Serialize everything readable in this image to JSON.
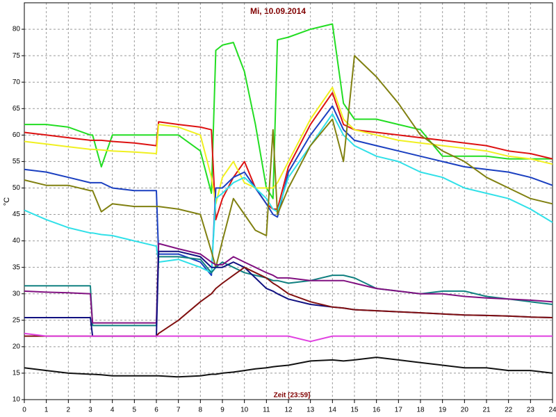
{
  "chart_data": {
    "type": "line",
    "title": "Mi, 10.09.2014",
    "ylabel": "°C",
    "xlabel": "Zeit [23:59]",
    "xlim": [
      0,
      24
    ],
    "ylim": [
      10,
      85
    ],
    "xticks": [
      0,
      1,
      2,
      3,
      4,
      5,
      6,
      7,
      8,
      9,
      10,
      11,
      12,
      13,
      14,
      15,
      16,
      17,
      18,
      19,
      20,
      21,
      22,
      23,
      24
    ],
    "yticks": [
      10,
      15,
      20,
      25,
      30,
      35,
      40,
      45,
      50,
      55,
      60,
      65,
      70,
      75,
      80
    ],
    "grid": true,
    "x": [
      0,
      1,
      2,
      3,
      3.1,
      3.5,
      4,
      5,
      6,
      6.1,
      7,
      8,
      8.5,
      8.7,
      9,
      9.5,
      10,
      10.5,
      11,
      11.3,
      11.5,
      12,
      13,
      14,
      14.5,
      15,
      16,
      17,
      18,
      19,
      20,
      21,
      22,
      23,
      24
    ],
    "series": [
      {
        "color": "#22dd22",
        "values": [
          62,
          62,
          61.5,
          60,
          60,
          54,
          60,
          60,
          60,
          60,
          60,
          57,
          49,
          76,
          77,
          77.5,
          72,
          62,
          50,
          48,
          78,
          78.5,
          80,
          81,
          66,
          63,
          63,
          62,
          61,
          56,
          56,
          56,
          55.5,
          55.5,
          55.5
        ]
      },
      {
        "color": "#dd1111",
        "values": [
          60.5,
          60,
          59.5,
          59,
          59,
          59,
          58.8,
          58.5,
          58,
          62.5,
          62,
          61.5,
          61,
          44,
          48,
          52,
          55,
          50,
          47,
          46,
          46,
          54,
          62,
          68,
          62,
          61,
          60.5,
          60,
          59.5,
          59,
          58.5,
          58,
          57,
          56.5,
          55.5
        ]
      },
      {
        "color": "#f0f020",
        "values": [
          58.8,
          58.3,
          57.8,
          57.3,
          57.3,
          57.2,
          57,
          56.8,
          56.5,
          62,
          61.5,
          60,
          52,
          47,
          52,
          55,
          51,
          50,
          50,
          50,
          51,
          55,
          63,
          69,
          63,
          61,
          60,
          59,
          58.5,
          58,
          57.5,
          57,
          56,
          55.5,
          54.5
        ]
      },
      {
        "color": "#1a3fc0",
        "values": [
          53.5,
          53,
          52,
          51,
          51,
          51,
          50,
          49.5,
          49.5,
          37.5,
          37.5,
          36,
          33.5,
          50,
          50,
          52,
          53,
          50,
          47,
          45,
          44.5,
          53,
          60,
          65.5,
          61,
          59,
          58,
          57,
          56,
          55,
          54,
          53.5,
          53,
          52,
          50.5
        ]
      },
      {
        "color": "#30e0e8",
        "values": [
          45.8,
          44,
          42.5,
          41.5,
          41.5,
          41.2,
          41,
          40,
          39,
          36,
          36.5,
          35,
          34,
          48,
          49,
          51,
          52,
          50,
          48,
          46,
          45.5,
          52,
          58,
          64,
          60,
          58,
          56,
          55,
          53,
          52,
          50,
          49,
          48,
          46,
          43.5
        ]
      },
      {
        "color": "#808010",
        "values": [
          51.5,
          50.5,
          50.5,
          49.5,
          49.5,
          45.5,
          47,
          46.5,
          46.5,
          46.5,
          46,
          45,
          38,
          35,
          40,
          48,
          45,
          42,
          41,
          61,
          45,
          50,
          58,
          63,
          55,
          75,
          71,
          66,
          60,
          57,
          55,
          52,
          50,
          48,
          47
        ]
      },
      {
        "color": "#108080",
        "values": [
          31.5,
          31.5,
          31.5,
          31.5,
          24,
          24,
          24,
          24,
          24,
          37,
          37,
          36.5,
          34,
          35,
          36,
          35,
          34,
          33.5,
          33,
          32.5,
          32.5,
          32,
          32.5,
          33.5,
          33.5,
          33,
          31,
          30.5,
          30,
          30.5,
          30.5,
          29.5,
          29,
          28.5,
          28
        ]
      },
      {
        "color": "#801080",
        "values": [
          30.5,
          30.3,
          30.2,
          30,
          24.5,
          24.5,
          24.5,
          24.5,
          24.5,
          39.5,
          38.5,
          37.5,
          36,
          35.5,
          35.5,
          37,
          36,
          35,
          34,
          33.5,
          33,
          33,
          32.5,
          32.5,
          32.5,
          32,
          31,
          30.5,
          30,
          30,
          29.5,
          29.2,
          29,
          28.8,
          28.5
        ]
      },
      {
        "color": "#101080",
        "values": [
          25.5,
          25.5,
          25.5,
          25.5,
          22,
          22,
          22,
          22,
          22,
          38,
          38,
          37,
          35,
          35,
          35,
          36,
          35,
          33,
          31,
          30.5,
          30,
          29,
          28,
          27.5,
          27.3,
          27,
          26.8,
          26.6,
          26.4,
          26.2,
          26,
          25.9,
          25.8,
          25.6,
          25.5
        ]
      },
      {
        "color": "#801010",
        "values": [
          22,
          22,
          22,
          22,
          22,
          22,
          22,
          22,
          22,
          22.5,
          25,
          28.5,
          30,
          31,
          32,
          33.5,
          35,
          34,
          33,
          32,
          31.5,
          30,
          28.5,
          27.5,
          27.3,
          27,
          26.8,
          26.6,
          26.4,
          26.2,
          26,
          25.9,
          25.8,
          25.6,
          25.5
        ]
      },
      {
        "color": "#e040e0",
        "values": [
          22.5,
          22,
          22,
          22,
          22,
          22,
          22,
          22,
          22,
          22,
          22,
          22,
          22,
          22,
          22,
          22,
          22,
          22,
          22,
          22,
          22,
          22,
          21,
          22,
          22,
          22,
          22,
          22,
          22,
          22,
          22,
          22,
          22,
          22,
          22
        ]
      },
      {
        "color": "#111111",
        "values": [
          16,
          15.5,
          15,
          14.8,
          14.8,
          14.7,
          14.5,
          14.5,
          14.5,
          14.5,
          14.3,
          14.5,
          14.8,
          14.8,
          15,
          15.2,
          15.5,
          15.8,
          16,
          16.2,
          16.3,
          16.5,
          17.3,
          17.5,
          17.3,
          17.5,
          18,
          17.5,
          17,
          16.5,
          16,
          16,
          15.5,
          15.5,
          15
        ]
      }
    ]
  }
}
